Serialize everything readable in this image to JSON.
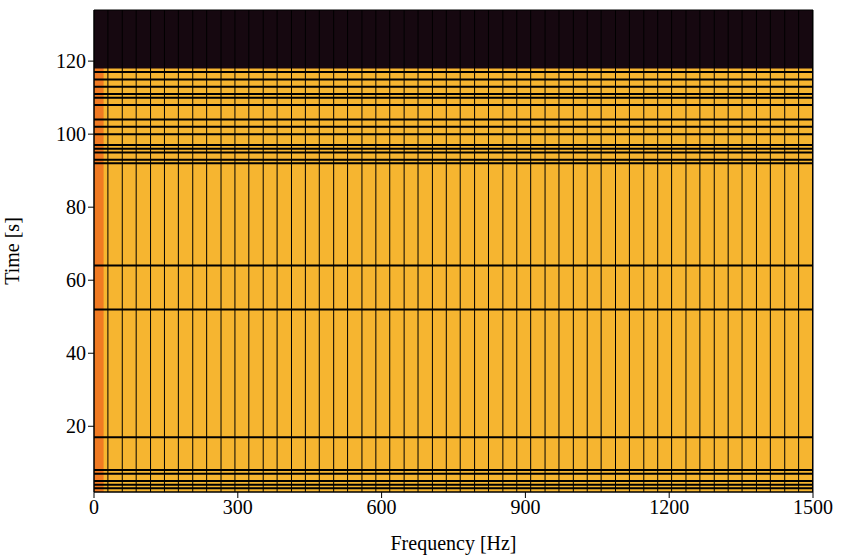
{
  "chart_data": {
    "type": "spectrogram",
    "x_label": "Frequency [Hz]",
    "y_label": "Time [s]",
    "xlim": [
      0,
      1500
    ],
    "xticks": [
      0,
      300,
      600,
      900,
      1200,
      1500
    ],
    "ylim": [
      2,
      134
    ],
    "yticks": [
      20,
      40,
      60,
      80,
      100,
      120
    ],
    "grid": false,
    "color": "#f6b530",
    "low_band": {
      "xlim": [
        0,
        20
      ],
      "color": "#f07a22"
    },
    "noisy_band": {
      "ylim": [
        118,
        134
      ],
      "color": "#160810"
    },
    "harmonic_frequencies": [
      29,
      59,
      88,
      118,
      147,
      176,
      206,
      235,
      265,
      294,
      323,
      353,
      382,
      412,
      441,
      470,
      500,
      529,
      559,
      588,
      617,
      647,
      676,
      706,
      735,
      764,
      794,
      823,
      853,
      882,
      911,
      941,
      970,
      1000,
      1029,
      1058,
      1088,
      1117,
      1147,
      1176,
      1205,
      1235,
      1264,
      1294,
      1323,
      1352,
      1382,
      1411,
      1441,
      1470,
      1499
    ],
    "dropout_times": [
      3,
      4,
      5,
      7,
      8,
      17,
      52,
      64,
      92,
      93,
      95,
      96,
      97,
      100,
      102,
      104,
      108,
      110,
      111,
      113,
      115,
      117
    ],
    "line_color": "#000000"
  }
}
